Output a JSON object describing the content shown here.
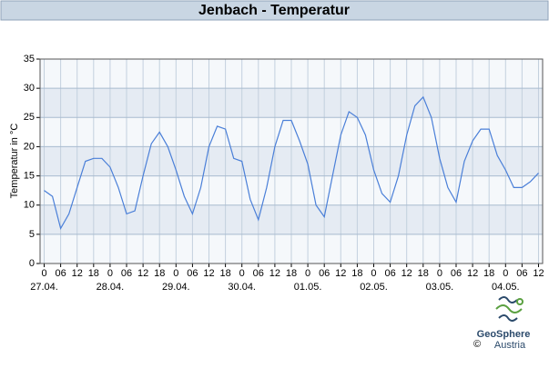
{
  "chart_data": {
    "type": "line",
    "title": "Jenbach - Temperatur",
    "ylabel": "Temperatur in °C",
    "x": [
      0,
      3,
      6,
      9,
      12,
      15,
      18,
      21,
      24,
      27,
      30,
      33,
      36,
      39,
      42,
      45,
      48,
      51,
      54,
      57,
      60,
      63,
      66,
      69,
      72,
      75,
      78,
      81,
      84,
      87,
      90,
      93,
      96,
      99,
      102,
      105,
      108,
      111,
      114,
      117,
      120,
      123,
      126,
      129,
      132,
      135,
      138,
      141,
      144,
      147,
      150,
      153,
      156,
      159,
      162,
      165,
      168,
      171,
      174,
      177,
      180
    ],
    "series": [
      {
        "name": "Temperatur",
        "color": "#4a7fd8",
        "values": [
          12.5,
          11.5,
          6,
          8.5,
          13,
          17.5,
          18,
          18,
          16.5,
          13,
          8.5,
          9,
          15,
          20.5,
          22.5,
          20,
          16,
          11.5,
          8.5,
          13,
          20,
          23.5,
          23,
          18,
          17.5,
          11,
          7.5,
          13,
          20,
          24.5,
          24.5,
          21,
          17,
          10,
          8,
          15,
          22,
          26,
          25,
          22,
          16,
          12,
          10.5,
          15,
          22,
          27,
          28.5,
          25,
          18,
          13,
          10.5,
          17.5,
          21,
          23,
          23,
          18.5,
          16,
          13,
          13,
          14,
          15.5
        ]
      }
    ],
    "xlim": [
      -1.5,
      181.5
    ],
    "ylim": [
      0,
      35
    ],
    "yticks": [
      0,
      5,
      10,
      15,
      20,
      25,
      30,
      35
    ],
    "xticks": [
      0,
      {
        "value": 6,
        "label": "06"
      },
      12,
      18,
      {
        "value": 24,
        "label": "0"
      },
      {
        "value": 30,
        "label": "06"
      },
      {
        "value": 36,
        "label": "12"
      },
      {
        "value": 42,
        "label": "18"
      },
      {
        "value": 48,
        "label": "0"
      },
      {
        "value": 54,
        "label": "06"
      },
      {
        "value": 60,
        "label": "12"
      },
      {
        "value": 66,
        "label": "18"
      },
      {
        "value": 72,
        "label": "0"
      },
      {
        "value": 78,
        "label": "06"
      },
      {
        "value": 84,
        "label": "12"
      },
      {
        "value": 90,
        "label": "18"
      },
      {
        "value": 96,
        "label": "0"
      },
      {
        "value": 102,
        "label": "06"
      },
      {
        "value": 108,
        "label": "12"
      },
      {
        "value": 114,
        "label": "18"
      },
      {
        "value": 120,
        "label": "0"
      },
      {
        "value": 126,
        "label": "06"
      },
      {
        "value": 132,
        "label": "12"
      },
      {
        "value": 138,
        "label": "18"
      },
      {
        "value": 144,
        "label": "0"
      },
      {
        "value": 150,
        "label": "06"
      },
      {
        "value": 156,
        "label": "12"
      },
      {
        "value": 162,
        "label": "18"
      },
      {
        "value": 168,
        "label": "0"
      },
      {
        "value": 174,
        "label": "06"
      },
      {
        "value": 180,
        "label": "12"
      }
    ],
    "date_labels": [
      {
        "value": 0,
        "label": "27.04."
      },
      {
        "value": 24,
        "label": "28.04."
      },
      {
        "value": 48,
        "label": "29.04."
      },
      {
        "value": 72,
        "label": "30.04."
      },
      {
        "value": 96,
        "label": "01.05."
      },
      {
        "value": 120,
        "label": "02.05."
      },
      {
        "value": 144,
        "label": "03.05."
      },
      {
        "value": 168,
        "label": "04.05."
      }
    ],
    "grid": true
  },
  "logo": {
    "name": "GeoSphere",
    "sub": "Austria",
    "copyright": "©"
  }
}
